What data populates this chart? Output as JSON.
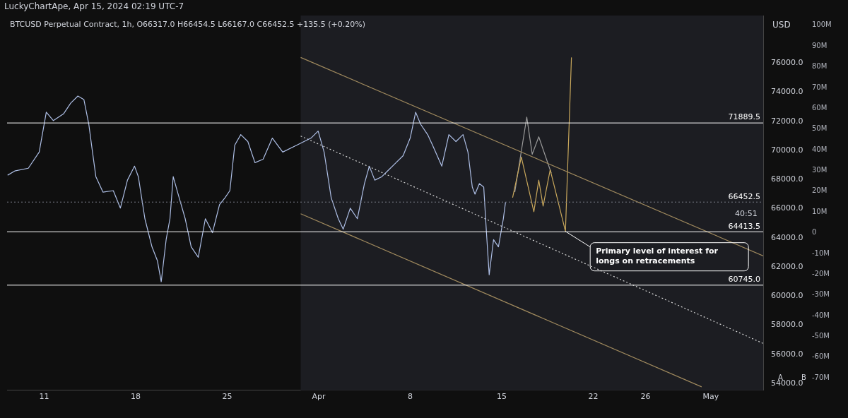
{
  "chart_data": {
    "type": "line",
    "title": "BTCUSD Perpetual Contract, 1h, O66317.0 H66454.5 L66167.0 C66452.5 +135.5 (+0.20%)",
    "annotations": [
      "LuckyChartApe, Apr 15, 2024 02:19 UTC-7",
      "USD",
      "40:51",
      "A",
      "B",
      {
        "text": "Primary level of interest for longs on retracements",
        "x": "2024-04-19T21:00",
        "y": 64440
      }
    ],
    "xlim": [
      "2024-03-08T04:00",
      "2024-05-05T00:00"
    ],
    "xticks": [
      {
        "value": "2024-03-11",
        "label": "11"
      },
      {
        "value": "2024-03-18",
        "label": "18"
      },
      {
        "value": "2024-03-25",
        "label": "25"
      },
      {
        "value": "2024-04-01",
        "label": "Apr"
      },
      {
        "value": "2024-04-08",
        "label": "8"
      },
      {
        "value": "2024-04-15",
        "label": "15"
      },
      {
        "value": "2024-04-22",
        "label": "22"
      },
      {
        "value": "2024-04-26",
        "label": "26"
      },
      {
        "value": "2024-05-01",
        "label": "May"
      }
    ],
    "ylim": [
      53520,
      79270
    ],
    "yticks": [
      {
        "value": 54000,
        "label": "54000.0"
      },
      {
        "value": 56000,
        "label": "56000.0"
      },
      {
        "value": 58000,
        "label": "58000.0"
      },
      {
        "value": 60000,
        "label": "60000.0"
      },
      {
        "value": 62000,
        "label": "62000.0"
      },
      {
        "value": 64000,
        "label": "64000.0"
      },
      {
        "value": 66000,
        "label": "66000.0"
      },
      {
        "value": 68000,
        "label": "68000.0"
      },
      {
        "value": 70000,
        "label": "70000.0"
      },
      {
        "value": 72000,
        "label": "72000.0"
      },
      {
        "value": 74000,
        "label": "74000.0"
      },
      {
        "value": 76000,
        "label": "76000.0"
      }
    ],
    "y2lim": [
      -76,
      104.7
    ],
    "y2ticks": [
      {
        "value": -70,
        "label": "-70M"
      },
      {
        "value": -60,
        "label": "-60M"
      },
      {
        "value": -50,
        "label": "-50M"
      },
      {
        "value": -40,
        "label": "-40M"
      },
      {
        "value": -30,
        "label": "-30M"
      },
      {
        "value": -20,
        "label": "-20M"
      },
      {
        "value": -10,
        "label": "-10M"
      },
      0,
      {
        "value": 10,
        "label": "10M"
      },
      {
        "value": 20,
        "label": "20M"
      },
      {
        "value": 30,
        "label": "30M"
      },
      {
        "value": 40,
        "label": "40M"
      },
      {
        "value": 50,
        "label": "50M"
      },
      {
        "value": 60,
        "label": "60M"
      },
      {
        "value": 70,
        "label": "70M"
      },
      {
        "value": 80,
        "label": "80M"
      },
      {
        "value": 90,
        "label": "90M"
      },
      {
        "value": 100,
        "label": "100M"
      }
    ],
    "grid": false,
    "legend": false,
    "marker": "none",
    "bands": [
      {
        "axis": "x",
        "from": "2024-03-30T15:00",
        "to": "2024-05-05T00:00",
        "color": "#1c1d22"
      }
    ],
    "ref_lines": [
      {
        "axis": "y",
        "value": 71889.5,
        "label": "71889.5",
        "color": "#ffffff",
        "line_style": "solid"
      },
      {
        "axis": "y",
        "value": 64413.5,
        "label": "64413.5",
        "color": "#ffffff",
        "line_style": "solid"
      },
      {
        "axis": "y",
        "value": 60745.0,
        "label": "60745.0",
        "color": "#ffffff",
        "line_style": "solid"
      },
      {
        "axis": "y",
        "value": 66452.5,
        "label": "66452.5",
        "color": "#787b86",
        "line_style": "dotted"
      }
    ],
    "series": [
      {
        "color": "#aebfe6",
        "line_style": "solid",
        "x": [
          "2024-03-08T05:00",
          "2024-03-08T18:00",
          "2024-03-09T19:00",
          "2024-03-10T15:00",
          "2024-03-11T04:00",
          "2024-03-11T17:00",
          "2024-03-12T12:00",
          "2024-03-13T01:00",
          "2024-03-13T14:00",
          "2024-03-14T01:00",
          "2024-03-14T10:00",
          "2024-03-14T16:00",
          "2024-03-14T23:00",
          "2024-03-15T12:00",
          "2024-03-16T07:00",
          "2024-03-16T20:00",
          "2024-03-17T09:00",
          "2024-03-17T22:00",
          "2024-03-18T05:00",
          "2024-03-18T17:00",
          "2024-03-19T06:00",
          "2024-03-19T16:00",
          "2024-03-19T23:00",
          "2024-03-20T08:00",
          "2024-03-20T15:00",
          "2024-03-20T21:00",
          "2024-03-21T06:00",
          "2024-03-21T19:00",
          "2024-03-22T06:00",
          "2024-03-22T19:00",
          "2024-03-23T08:00",
          "2024-03-23T21:00",
          "2024-03-24T10:00",
          "2024-03-24T20:00",
          "2024-03-25T05:00",
          "2024-03-25T14:00",
          "2024-03-26T01:00",
          "2024-03-26T14:00",
          "2024-03-27T03:00",
          "2024-03-27T18:00",
          "2024-03-28T11:00",
          "2024-03-29T06:00",
          "2024-03-30T08:00",
          "2024-03-31T10:00",
          "2024-03-31T23:00",
          "2024-04-01T10:00",
          "2024-04-01T23:00",
          "2024-04-02T12:00",
          "2024-04-02T21:00",
          "2024-04-03T10:00",
          "2024-04-03T23:00",
          "2024-04-04T12:00",
          "2024-04-04T21:00",
          "2024-04-05T07:00",
          "2024-04-05T20:00",
          "2024-04-06T09:00",
          "2024-04-06T22:00",
          "2024-04-07T11:00",
          "2024-04-08T00:00",
          "2024-04-08T10:00",
          "2024-04-08T19:00",
          "2024-04-09T08:00",
          "2024-04-09T17:00",
          "2024-04-10T10:00",
          "2024-04-10T23:00",
          "2024-04-11T12:00",
          "2024-04-12T01:00",
          "2024-04-12T10:00",
          "2024-04-12T18:00",
          "2024-04-12T23:00",
          "2024-04-13T07:00",
          "2024-04-13T15:00",
          "2024-04-13T20:00",
          "2024-04-14T01:00",
          "2024-04-14T09:00",
          "2024-04-14T18:00",
          "2024-04-15T03:00",
          "2024-04-15T07:00"
        ],
        "values": [
          68300,
          68590,
          68780,
          69890,
          72630,
          72050,
          72530,
          73260,
          73740,
          73500,
          71810,
          70120,
          68200,
          67140,
          67240,
          66040,
          67960,
          68920,
          68200,
          65310,
          63380,
          62420,
          60980,
          63870,
          65310,
          68200,
          67000,
          65310,
          63380,
          62660,
          65310,
          64350,
          66270,
          66750,
          67240,
          70370,
          71090,
          70610,
          69160,
          69400,
          70850,
          69890,
          70370,
          70850,
          71330,
          69890,
          66750,
          65310,
          64590,
          66030,
          65310,
          67720,
          68920,
          67960,
          68200,
          68680,
          69160,
          69640,
          70850,
          72630,
          71810,
          71090,
          70370,
          68920,
          71090,
          70610,
          71090,
          69890,
          67480,
          67000,
          67720,
          67480,
          64350,
          61460,
          63870,
          63380,
          65310,
          66450
        ]
      },
      {
        "color": "#a08a5e",
        "line_style": "solid",
        "x": [
          "2024-03-30T15:00",
          "2024-05-05T00:00"
        ],
        "values": [
          76390,
          62760
        ]
      },
      {
        "color": "#d8d8d8",
        "line_style": "dotted",
        "x": [
          "2024-03-30T15:00",
          "2024-05-05T00:00"
        ],
        "values": [
          70990,
          56740
        ]
      },
      {
        "color": "#a08a5e",
        "line_style": "solid",
        "x": [
          "2024-03-30T15:00",
          "2024-04-30T07:00"
        ],
        "values": [
          65650,
          53760
        ]
      },
      {
        "color": "#c9a85c",
        "line_style": "solid",
        "x": [
          "2024-04-15T20:00",
          "2024-04-16T12:00",
          "2024-04-17T11:00",
          "2024-04-17T20:00",
          "2024-04-18T04:00",
          "2024-04-18T17:00",
          "2024-04-19T21:00",
          "2024-04-20T08:00"
        ],
        "values": [
          66760,
          69550,
          65790,
          67960,
          66180,
          68680,
          64440,
          76390
        ]
      },
      {
        "color": "#9a9a9a",
        "line_style": "solid",
        "x": [
          "2024-04-16T00:00",
          "2024-04-16T22:00",
          "2024-04-17T08:00",
          "2024-04-17T20:00",
          "2024-04-18T19:00"
        ],
        "values": [
          67140,
          72290,
          69740,
          70940,
          68440
        ]
      }
    ]
  }
}
